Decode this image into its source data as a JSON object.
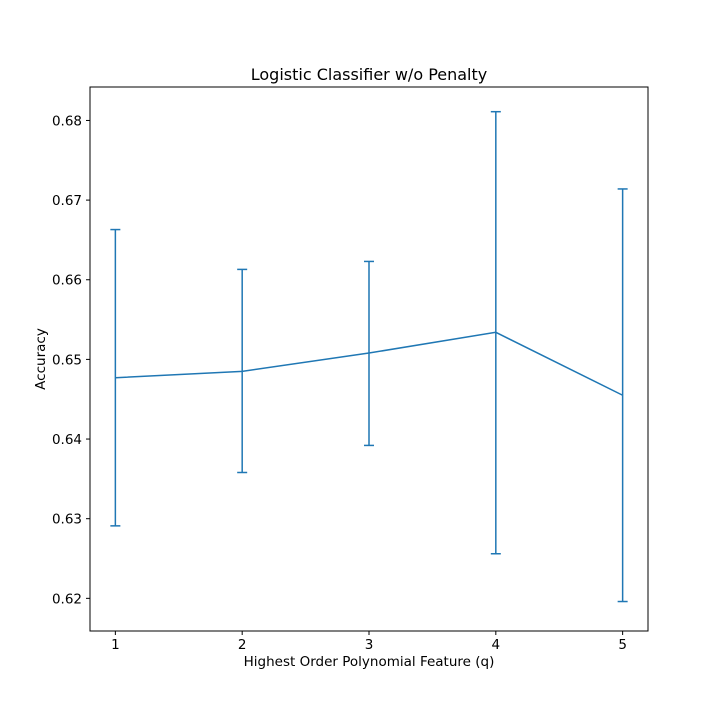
{
  "chart_data": {
    "type": "line",
    "title": "Logistic Classifier w/o Penalty",
    "xlabel": "Highest Order Polynomial Feature (q)",
    "ylabel": "Accuracy",
    "x": [
      1,
      2,
      3,
      4,
      5
    ],
    "x_tick_labels": [
      "1",
      "2",
      "3",
      "4",
      "5"
    ],
    "y_ticks": [
      0.62,
      0.63,
      0.64,
      0.65,
      0.66,
      0.67,
      0.68
    ],
    "y_tick_labels": [
      "0.62",
      "0.63",
      "0.64",
      "0.65",
      "0.66",
      "0.67",
      "0.68"
    ],
    "xlim": [
      0.8,
      5.2
    ],
    "ylim": [
      0.6159,
      0.6842
    ],
    "grid": false,
    "series": [
      {
        "values": [
          0.6477,
          0.6485,
          0.6508,
          0.6534,
          0.6455
        ],
        "error_low": [
          0.6291,
          0.6358,
          0.6392,
          0.6256,
          0.6196
        ],
        "error_high": [
          0.6663,
          0.6613,
          0.6623,
          0.6811,
          0.6714
        ],
        "color": "#1f77b4"
      }
    ]
  }
}
